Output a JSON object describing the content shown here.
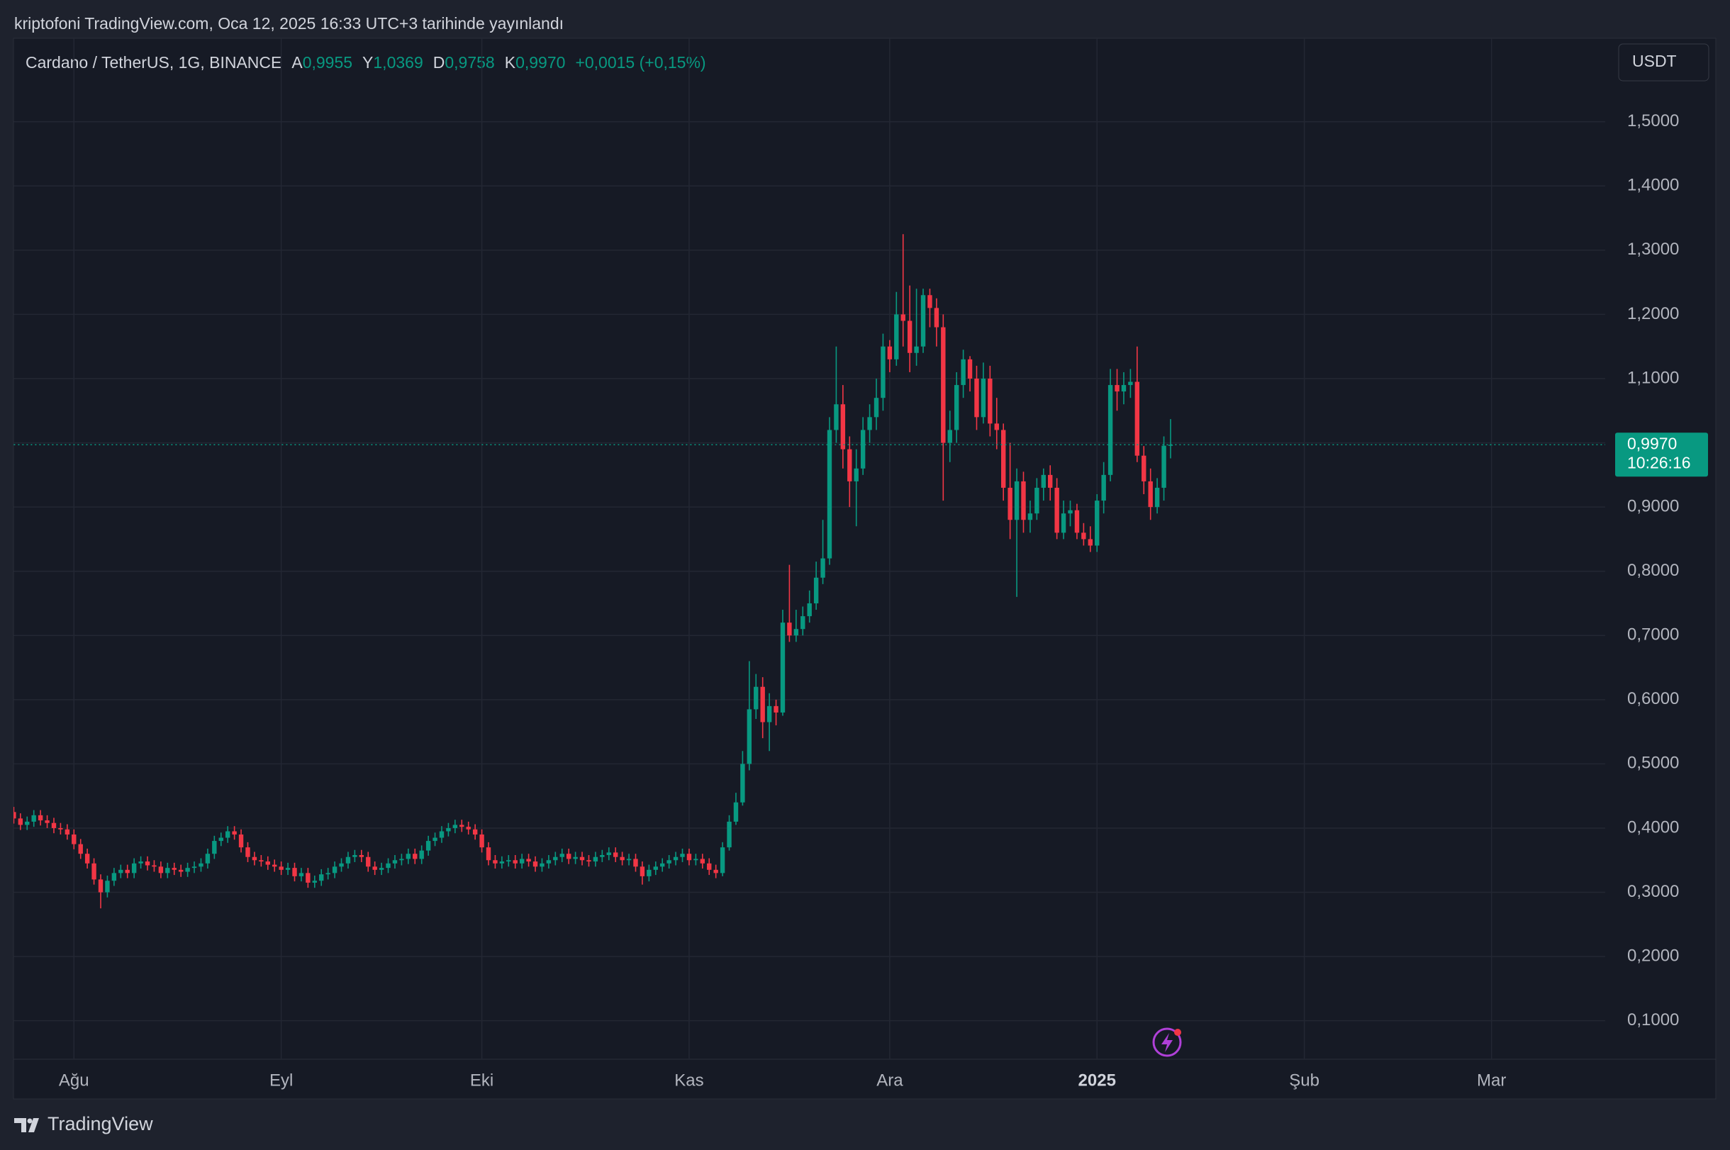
{
  "header": {
    "published": "kriptofoni TradingView.com, Oca 12, 2025 16:33 UTC+3 tarihinde yayınlandı"
  },
  "footer": {
    "brand": "TradingView"
  },
  "chart_data": {
    "type": "candlestick",
    "symbol": "Cardano / TetherUS, 1G, BINANCE",
    "legend_items": [
      {
        "label": "A",
        "value": "0,9955"
      },
      {
        "label": "Y",
        "value": "1,0369"
      },
      {
        "label": "D",
        "value": "0,9758"
      },
      {
        "label": "K",
        "value": "0,9970"
      }
    ],
    "change": "+0,0015 (+0,15%)",
    "currency": "USDT",
    "last_price": {
      "value": 0.997,
      "label": "0,9970"
    },
    "countdown": "10:26:16",
    "up_color": "#089981",
    "down_color": "#f23645",
    "grid": true,
    "xlim": [
      0,
      238
    ],
    "xticks": [
      {
        "value": 9,
        "label": "Ağu"
      },
      {
        "value": 40,
        "label": "Eyl"
      },
      {
        "value": 70,
        "label": "Eki"
      },
      {
        "value": 101,
        "label": "Kas"
      },
      {
        "value": 131,
        "label": "Ara"
      },
      {
        "value": 162,
        "label": "2025"
      },
      {
        "value": 193,
        "label": "Şub"
      },
      {
        "value": 221,
        "label": "Mar"
      }
    ],
    "ylim": [
      0.04,
      1.63
    ],
    "yticks": [
      {
        "value": 0.1,
        "label": "0,1000"
      },
      {
        "value": 0.2,
        "label": "0,2000"
      },
      {
        "value": 0.3,
        "label": "0,3000"
      },
      {
        "value": 0.4,
        "label": "0,4000"
      },
      {
        "value": 0.5,
        "label": "0,5000"
      },
      {
        "value": 0.6,
        "label": "0,6000"
      },
      {
        "value": 0.7,
        "label": "0,7000"
      },
      {
        "value": 0.8,
        "label": "0,8000"
      },
      {
        "value": 0.9,
        "label": "0,9000"
      },
      {
        "value": 1.0,
        "label": "1,0000"
      },
      {
        "value": 1.1,
        "label": "1,1000"
      },
      {
        "value": 1.2,
        "label": "1,2000"
      },
      {
        "value": 1.3,
        "label": "1,3000"
      },
      {
        "value": 1.4,
        "label": "1,4000"
      },
      {
        "value": 1.5,
        "label": "1,5000"
      }
    ],
    "open": [
      0.425,
      0.415,
      0.405,
      0.41,
      0.42,
      0.412,
      0.408,
      0.4,
      0.398,
      0.39,
      0.375,
      0.36,
      0.345,
      0.32,
      0.3,
      0.318,
      0.33,
      0.335,
      0.33,
      0.345,
      0.348,
      0.342,
      0.34,
      0.33,
      0.338,
      0.335,
      0.332,
      0.338,
      0.34,
      0.345,
      0.36,
      0.38,
      0.385,
      0.395,
      0.39,
      0.37,
      0.355,
      0.35,
      0.348,
      0.343,
      0.34,
      0.335,
      0.338,
      0.325,
      0.33,
      0.315,
      0.318,
      0.328,
      0.33,
      0.34,
      0.345,
      0.355,
      0.358,
      0.355,
      0.34,
      0.335,
      0.338,
      0.345,
      0.35,
      0.352,
      0.36,
      0.352,
      0.365,
      0.38,
      0.385,
      0.395,
      0.4,
      0.405,
      0.402,
      0.398,
      0.39,
      0.37,
      0.35,
      0.345,
      0.348,
      0.35,
      0.345,
      0.352,
      0.348,
      0.34,
      0.345,
      0.35,
      0.355,
      0.36,
      0.352,
      0.355,
      0.35,
      0.348,
      0.355,
      0.358,
      0.362,
      0.355,
      0.35,
      0.352,
      0.34,
      0.325,
      0.335,
      0.34,
      0.345,
      0.35,
      0.355,
      0.36,
      0.35,
      0.352,
      0.345,
      0.335,
      0.33,
      0.37,
      0.41,
      0.44,
      0.5,
      0.585,
      0.62,
      0.565,
      0.59,
      0.58,
      0.72,
      0.7,
      0.71,
      0.73,
      0.75,
      0.79,
      0.82,
      1.02,
      1.06,
      0.99,
      0.94,
      0.96,
      1.02,
      1.04,
      1.07,
      1.15,
      1.13,
      1.2,
      1.19,
      1.14,
      1.15,
      1.23,
      1.21,
      1.18,
      1.0,
      1.02,
      1.09,
      1.13,
      1.1,
      1.04,
      1.1,
      1.03,
      1.02,
      0.93,
      0.88,
      0.94,
      0.88,
      0.89,
      0.93,
      0.95,
      0.93,
      0.86,
      0.89,
      0.895,
      0.86,
      0.85,
      0.84,
      0.91,
      0.95,
      1.09,
      1.08,
      1.09,
      1.095,
      0.98,
      0.94,
      0.9,
      0.93,
      0.9955
    ],
    "high": [
      0.433,
      0.423,
      0.418,
      0.428,
      0.428,
      0.42,
      0.416,
      0.408,
      0.406,
      0.398,
      0.383,
      0.368,
      0.353,
      0.328,
      0.326,
      0.338,
      0.343,
      0.343,
      0.353,
      0.356,
      0.356,
      0.35,
      0.348,
      0.346,
      0.346,
      0.343,
      0.346,
      0.348,
      0.353,
      0.368,
      0.388,
      0.393,
      0.403,
      0.403,
      0.398,
      0.378,
      0.363,
      0.358,
      0.356,
      0.351,
      0.348,
      0.346,
      0.346,
      0.338,
      0.338,
      0.326,
      0.336,
      0.338,
      0.348,
      0.353,
      0.363,
      0.366,
      0.366,
      0.363,
      0.348,
      0.346,
      0.353,
      0.358,
      0.36,
      0.368,
      0.368,
      0.373,
      0.388,
      0.393,
      0.403,
      0.408,
      0.413,
      0.413,
      0.41,
      0.406,
      0.398,
      0.378,
      0.358,
      0.356,
      0.358,
      0.358,
      0.36,
      0.36,
      0.356,
      0.353,
      0.358,
      0.363,
      0.368,
      0.368,
      0.363,
      0.363,
      0.358,
      0.363,
      0.366,
      0.37,
      0.37,
      0.363,
      0.36,
      0.36,
      0.348,
      0.343,
      0.348,
      0.353,
      0.358,
      0.363,
      0.368,
      0.368,
      0.36,
      0.36,
      0.353,
      0.343,
      0.378,
      0.42,
      0.455,
      0.52,
      0.66,
      0.64,
      0.635,
      0.61,
      0.6,
      0.74,
      0.81,
      0.74,
      0.745,
      0.77,
      0.815,
      0.88,
      1.04,
      1.15,
      1.09,
      1.01,
      0.99,
      1.04,
      1.06,
      1.1,
      1.17,
      1.16,
      1.235,
      1.325,
      1.245,
      1.24,
      1.24,
      1.24,
      1.225,
      1.2,
      1.05,
      1.11,
      1.145,
      1.135,
      1.12,
      1.125,
      1.12,
      1.07,
      1.03,
      1.0,
      0.96,
      0.955,
      0.91,
      0.945,
      0.96,
      0.965,
      0.945,
      0.91,
      0.91,
      0.905,
      0.875,
      0.87,
      0.92,
      0.97,
      1.115,
      1.115,
      1.11,
      1.115,
      1.15,
      0.995,
      0.96,
      0.945,
      1.01,
      1.0369
    ],
    "low": [
      0.407,
      0.397,
      0.397,
      0.402,
      0.404,
      0.4,
      0.392,
      0.39,
      0.382,
      0.367,
      0.352,
      0.337,
      0.312,
      0.275,
      0.292,
      0.31,
      0.322,
      0.322,
      0.322,
      0.337,
      0.334,
      0.332,
      0.322,
      0.322,
      0.327,
      0.324,
      0.324,
      0.33,
      0.332,
      0.337,
      0.352,
      0.372,
      0.377,
      0.382,
      0.362,
      0.347,
      0.342,
      0.34,
      0.335,
      0.332,
      0.327,
      0.327,
      0.317,
      0.317,
      0.307,
      0.307,
      0.31,
      0.32,
      0.322,
      0.332,
      0.337,
      0.347,
      0.347,
      0.332,
      0.327,
      0.327,
      0.33,
      0.337,
      0.342,
      0.344,
      0.344,
      0.344,
      0.357,
      0.372,
      0.377,
      0.387,
      0.392,
      0.394,
      0.39,
      0.382,
      0.362,
      0.342,
      0.337,
      0.337,
      0.34,
      0.337,
      0.337,
      0.34,
      0.332,
      0.332,
      0.337,
      0.342,
      0.347,
      0.344,
      0.344,
      0.342,
      0.34,
      0.34,
      0.347,
      0.35,
      0.347,
      0.342,
      0.342,
      0.332,
      0.312,
      0.317,
      0.327,
      0.332,
      0.337,
      0.342,
      0.347,
      0.342,
      0.342,
      0.337,
      0.327,
      0.322,
      0.325,
      0.365,
      0.405,
      0.435,
      0.49,
      0.57,
      0.54,
      0.52,
      0.56,
      0.575,
      0.69,
      0.69,
      0.7,
      0.72,
      0.74,
      0.78,
      0.81,
      1.0,
      0.96,
      0.9,
      0.87,
      0.95,
      1.0,
      1.02,
      1.05,
      1.11,
      1.12,
      1.15,
      1.11,
      1.12,
      1.14,
      1.18,
      1.15,
      0.91,
      0.97,
      1.0,
      1.07,
      1.08,
      1.02,
      1.03,
      1.01,
      0.99,
      0.91,
      0.85,
      0.76,
      0.86,
      0.86,
      0.88,
      0.91,
      0.91,
      0.85,
      0.85,
      0.87,
      0.85,
      0.84,
      0.83,
      0.83,
      0.89,
      0.94,
      1.05,
      1.06,
      1.07,
      0.97,
      0.92,
      0.88,
      0.89,
      0.91,
      0.9758
    ],
    "close": [
      0.415,
      0.405,
      0.41,
      0.42,
      0.412,
      0.408,
      0.4,
      0.398,
      0.39,
      0.375,
      0.36,
      0.345,
      0.32,
      0.3,
      0.318,
      0.33,
      0.335,
      0.33,
      0.345,
      0.348,
      0.342,
      0.34,
      0.33,
      0.338,
      0.335,
      0.332,
      0.338,
      0.34,
      0.345,
      0.36,
      0.38,
      0.385,
      0.395,
      0.39,
      0.37,
      0.355,
      0.35,
      0.348,
      0.343,
      0.34,
      0.335,
      0.338,
      0.325,
      0.33,
      0.315,
      0.318,
      0.328,
      0.33,
      0.34,
      0.345,
      0.355,
      0.358,
      0.355,
      0.34,
      0.335,
      0.338,
      0.345,
      0.35,
      0.352,
      0.36,
      0.352,
      0.365,
      0.38,
      0.385,
      0.395,
      0.4,
      0.405,
      0.402,
      0.398,
      0.39,
      0.37,
      0.35,
      0.345,
      0.348,
      0.35,
      0.345,
      0.352,
      0.348,
      0.34,
      0.345,
      0.35,
      0.355,
      0.36,
      0.352,
      0.355,
      0.35,
      0.348,
      0.355,
      0.358,
      0.362,
      0.355,
      0.35,
      0.352,
      0.34,
      0.325,
      0.335,
      0.34,
      0.345,
      0.35,
      0.355,
      0.36,
      0.35,
      0.352,
      0.345,
      0.335,
      0.33,
      0.37,
      0.41,
      0.44,
      0.5,
      0.585,
      0.62,
      0.565,
      0.59,
      0.58,
      0.72,
      0.7,
      0.71,
      0.73,
      0.75,
      0.79,
      0.82,
      1.02,
      1.06,
      0.99,
      0.94,
      0.96,
      1.02,
      1.04,
      1.07,
      1.15,
      1.13,
      1.2,
      1.19,
      1.14,
      1.15,
      1.23,
      1.21,
      1.18,
      1.0,
      1.02,
      1.09,
      1.13,
      1.1,
      1.04,
      1.1,
      1.03,
      1.02,
      0.93,
      0.88,
      0.94,
      0.88,
      0.89,
      0.93,
      0.95,
      0.93,
      0.86,
      0.89,
      0.895,
      0.86,
      0.85,
      0.84,
      0.91,
      0.95,
      1.09,
      1.08,
      1.09,
      1.095,
      0.98,
      0.94,
      0.9,
      0.93,
      0.9955,
      0.997
    ]
  }
}
